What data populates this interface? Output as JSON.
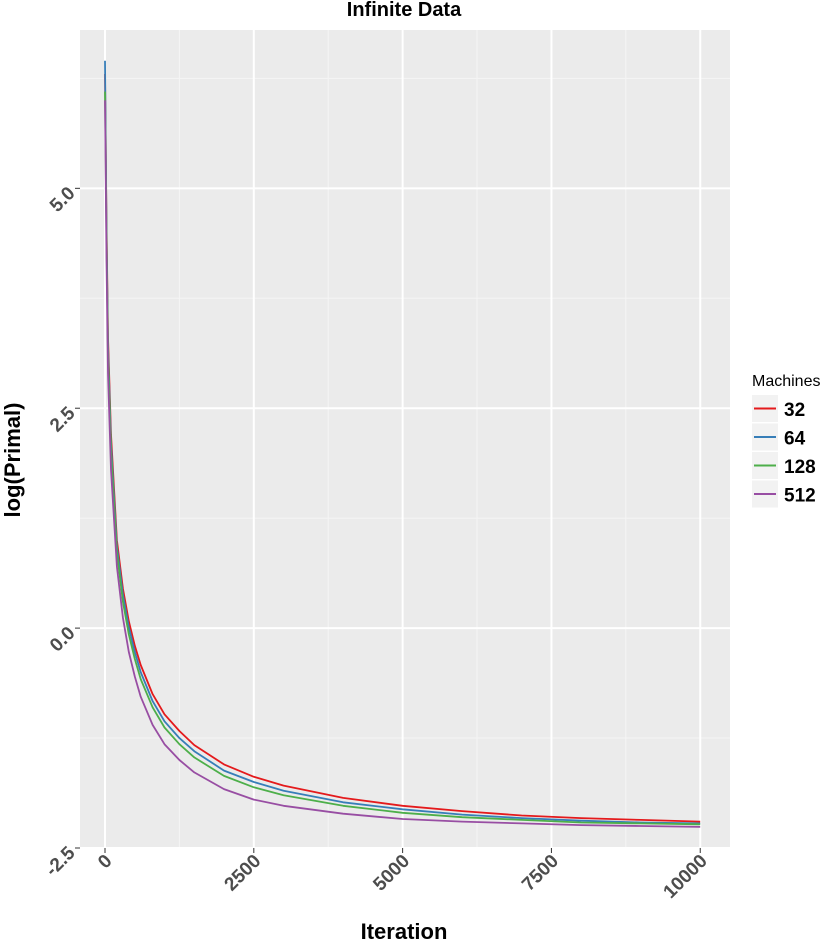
{
  "chart_data": {
    "type": "line",
    "title": "Infinite Data",
    "xlabel": "Iteration",
    "ylabel": "log(Primal)",
    "xlim": [
      -420,
      10500
    ],
    "ylim": [
      -2.5,
      6.8
    ],
    "x_ticks": [
      0,
      2500,
      5000,
      7500,
      10000
    ],
    "x_tick_labels": [
      "0",
      "2500",
      "5000",
      "7500",
      "10000"
    ],
    "y_ticks": [
      -2.5,
      0.0,
      2.5,
      5.0
    ],
    "y_tick_labels": [
      "-2.5",
      "0.0",
      "2.5",
      "5.0"
    ],
    "grid": true,
    "legend": {
      "title": "Machines",
      "position": "right"
    },
    "x": [
      0,
      25,
      50,
      100,
      200,
      300,
      400,
      500,
      600,
      800,
      1000,
      1250,
      1500,
      2000,
      2500,
      3000,
      4000,
      5000,
      6000,
      7000,
      8000,
      9000,
      10000
    ],
    "series": [
      {
        "name": "32",
        "color": "#e41a1c",
        "values": [
          6.3,
          4.6,
          3.3,
          2.2,
          1.0,
          0.45,
          0.08,
          -0.2,
          -0.42,
          -0.75,
          -0.98,
          -1.17,
          -1.33,
          -1.55,
          -1.69,
          -1.79,
          -1.93,
          -2.02,
          -2.08,
          -2.13,
          -2.16,
          -2.18,
          -2.2
        ]
      },
      {
        "name": "64",
        "color": "#377eb8",
        "values": [
          6.45,
          4.5,
          3.2,
          2.1,
          0.93,
          0.38,
          0.01,
          -0.27,
          -0.5,
          -0.83,
          -1.06,
          -1.25,
          -1.4,
          -1.62,
          -1.75,
          -1.85,
          -1.98,
          -2.06,
          -2.12,
          -2.16,
          -2.19,
          -2.21,
          -2.22
        ]
      },
      {
        "name": "128",
        "color": "#4daf4a",
        "values": [
          6.1,
          4.4,
          3.1,
          2.0,
          0.86,
          0.3,
          -0.07,
          -0.35,
          -0.58,
          -0.9,
          -1.13,
          -1.32,
          -1.47,
          -1.68,
          -1.81,
          -1.9,
          -2.02,
          -2.1,
          -2.15,
          -2.18,
          -2.21,
          -2.22,
          -2.23
        ]
      },
      {
        "name": "512",
        "color": "#984ea3",
        "values": [
          6.0,
          4.2,
          2.9,
          1.8,
          0.7,
          0.12,
          -0.27,
          -0.55,
          -0.78,
          -1.1,
          -1.32,
          -1.5,
          -1.64,
          -1.83,
          -1.95,
          -2.02,
          -2.11,
          -2.17,
          -2.2,
          -2.22,
          -2.24,
          -2.25,
          -2.26
        ]
      }
    ]
  }
}
